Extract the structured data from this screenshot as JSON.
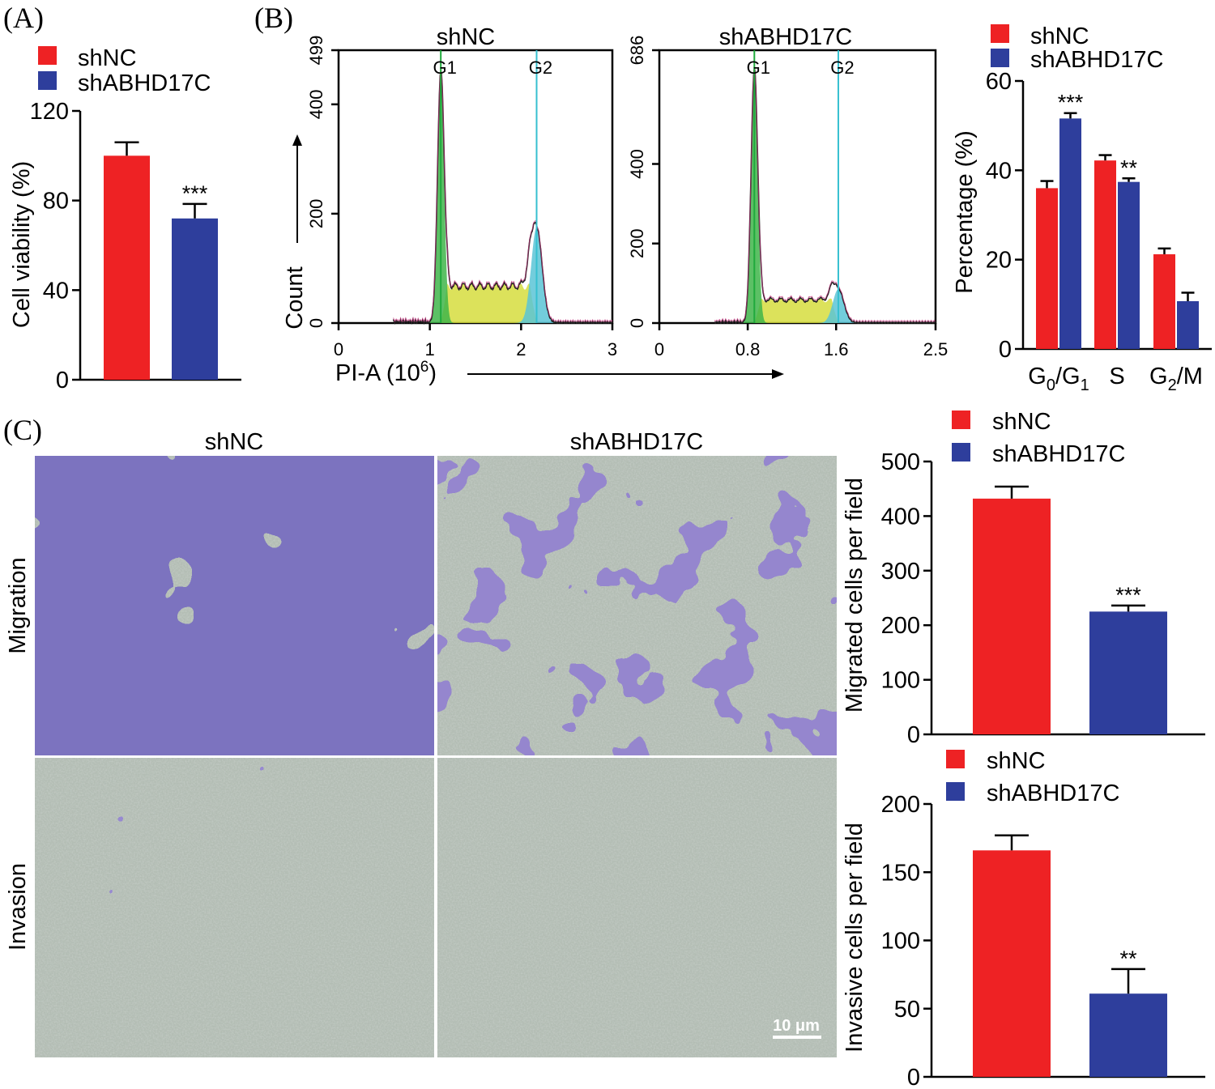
{
  "colors": {
    "shNC": "#ee2224",
    "shABHD17C": "#2e3e9c",
    "g1_fill": "#3fb54a",
    "s_fill": "#d6dd3e",
    "g2_fill": "#5bc4d6",
    "g1_line": "#1faa3c",
    "g2_line": "#36c0d0",
    "stain": "#3a2f96",
    "membrane": "#b3bdb4"
  },
  "panel_labels": {
    "a": "(A)",
    "b": "(B)",
    "c": "(C)"
  },
  "legend": {
    "shNC": "shNC",
    "shABHD17C": "shABHD17C"
  },
  "chart_data": [
    {
      "id": "viability",
      "type": "bar",
      "categories": [
        "shNC",
        "shABHD17C"
      ],
      "values": [
        100,
        72
      ],
      "errors": [
        6,
        6.5
      ],
      "significance": [
        "",
        "***"
      ],
      "ylabel": "Cell viability (%)",
      "ylim": [
        0,
        120
      ],
      "yticks": [
        "0",
        "40",
        "80",
        "120"
      ],
      "legend": "top-left"
    },
    {
      "id": "flow-shNC",
      "type": "area",
      "title": "shNC",
      "ylabel": "Count",
      "xlabel": "PI-A (10",
      "xlabel_sup": "6",
      "xlabel_end": ")",
      "xlim": [
        0,
        3
      ],
      "ylim": [
        0,
        499
      ],
      "xticks": [
        "0",
        "1",
        "2",
        "3"
      ],
      "yticks": [
        "0",
        "200",
        "400",
        "499"
      ],
      "peaks": {
        "G1": 1.12,
        "G2": 2.17
      },
      "peak_labels": [
        "G1",
        "G2"
      ],
      "g1_height": 460,
      "g2_height": 175,
      "s_level": 70
    },
    {
      "id": "flow-shABHD17C",
      "type": "area",
      "title": "shABHD17C",
      "xlim": [
        0,
        2.5
      ],
      "ylim": [
        0,
        686
      ],
      "xticks": [
        "0",
        "0.8",
        "1.6",
        "2.5"
      ],
      "yticks": [
        "0",
        "200",
        "400",
        "686"
      ],
      "peaks": {
        "G1": 0.86,
        "G2": 1.62
      },
      "peak_labels": [
        "G1",
        "G2"
      ],
      "g1_height": 640,
      "g2_height": 85,
      "s_level": 60
    },
    {
      "id": "cell-cycle",
      "type": "bar",
      "categories": [
        "G0/G1",
        "S",
        "G2/M"
      ],
      "category_parts": [
        [
          "G",
          "0",
          "/G",
          "1"
        ],
        [
          "S",
          "",
          "",
          ""
        ],
        [
          "G",
          "2",
          "/M",
          ""
        ]
      ],
      "series": [
        {
          "name": "shNC",
          "values": [
            36,
            42.2,
            21.2
          ],
          "errors": [
            1.6,
            1.2,
            1.3
          ],
          "significance": [
            "",
            "",
            ""
          ]
        },
        {
          "name": "shABHD17C",
          "values": [
            51.6,
            37.4,
            10.7
          ],
          "errors": [
            1.2,
            0.8,
            1.9
          ],
          "significance": [
            "***",
            "**",
            ""
          ]
        }
      ],
      "ylabel": "Percentage (%)",
      "ylim": [
        0,
        60
      ],
      "yticks": [
        "0",
        "20",
        "40",
        "60"
      ],
      "legend": "top"
    },
    {
      "id": "migration",
      "type": "bar",
      "categories": [
        "shNC",
        "shABHD17C"
      ],
      "values": [
        432,
        225
      ],
      "errors": [
        22,
        11
      ],
      "significance": [
        "",
        "***"
      ],
      "ylabel": "Migrated cells per field",
      "ylim": [
        0,
        500
      ],
      "yticks": [
        "0",
        "100",
        "200",
        "300",
        "400",
        "500"
      ],
      "legend": "top"
    },
    {
      "id": "invasion",
      "type": "bar",
      "categories": [
        "shNC",
        "shABHD17C"
      ],
      "values": [
        166,
        61
      ],
      "errors": [
        11,
        18
      ],
      "significance": [
        "",
        "**"
      ],
      "ylabel": "Invasive cells per field",
      "ylim": [
        0,
        200
      ],
      "yticks": [
        "0",
        "50",
        "100",
        "150",
        "200"
      ],
      "legend": "top"
    }
  ],
  "micrographs": {
    "col_labels": [
      "shNC",
      "shABHD17C"
    ],
    "row_labels": [
      "Migration",
      "Invasion"
    ],
    "scale_bar": "10 μm"
  }
}
